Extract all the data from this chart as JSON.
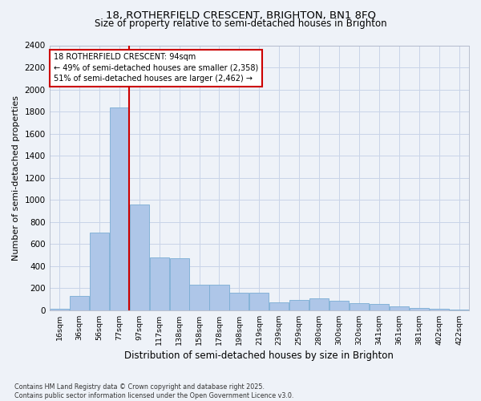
{
  "title_line1": "18, ROTHERFIELD CRESCENT, BRIGHTON, BN1 8FQ",
  "title_line2": "Size of property relative to semi-detached houses in Brighton",
  "xlabel": "Distribution of semi-detached houses by size in Brighton",
  "ylabel": "Number of semi-detached properties",
  "property_label": "18 ROTHERFIELD CRESCENT: 94sqm",
  "pct_smaller": 49,
  "n_smaller": 2358,
  "pct_larger": 51,
  "n_larger": 2462,
  "categories": [
    "16sqm",
    "36sqm",
    "56sqm",
    "77sqm",
    "97sqm",
    "117sqm",
    "138sqm",
    "158sqm",
    "178sqm",
    "198sqm",
    "219sqm",
    "239sqm",
    "259sqm",
    "280sqm",
    "300sqm",
    "320sqm",
    "341sqm",
    "361sqm",
    "381sqm",
    "402sqm",
    "422sqm"
  ],
  "values": [
    10,
    130,
    700,
    1840,
    960,
    480,
    470,
    230,
    230,
    155,
    155,
    70,
    90,
    105,
    85,
    65,
    55,
    35,
    20,
    15,
    5
  ],
  "vline_bin_index": 4,
  "bar_color": "#aec6e8",
  "bar_edge_color": "#7aadd4",
  "vline_color": "#cc0000",
  "grid_color": "#c8d4e8",
  "background_color": "#eef2f8",
  "annotation_box_facecolor": "#ffffff",
  "annotation_box_edgecolor": "#cc0000",
  "ylim": [
    0,
    2400
  ],
  "yticks": [
    0,
    200,
    400,
    600,
    800,
    1000,
    1200,
    1400,
    1600,
    1800,
    2000,
    2200,
    2400
  ],
  "footnote": "Contains HM Land Registry data © Crown copyright and database right 2025.\nContains public sector information licensed under the Open Government Licence v3.0."
}
